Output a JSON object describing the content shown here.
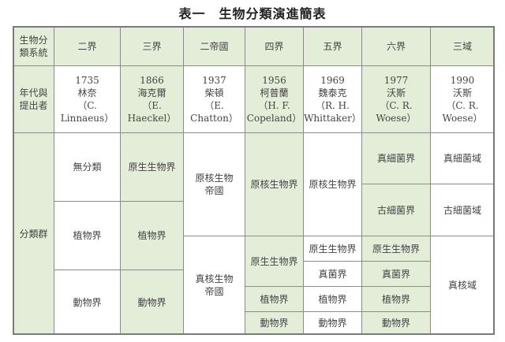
{
  "title": "表一　生物分類演進簡表",
  "colors": {
    "green": "#e4edd8",
    "border": "#8a8a8a"
  },
  "header": {
    "row_label": "生物分\n類系統",
    "systems": [
      "二界",
      "三界",
      "二帝國",
      "四界",
      "五界",
      "六界",
      "三域"
    ]
  },
  "proposers": {
    "row_label": "年代與\n提出者",
    "entries": [
      "1735\n林奈\n（C. Linnaeus）",
      "1866\n海克爾\n（E. Haeckel）",
      "1937\n柴頓\n（E. Chatton）",
      "1956\n柯普蘭\n（H. F.\nCopeland）",
      "1969\n魏泰克\n（R. H.\nWhittaker）",
      "1977\n沃斯\n（C. R. Woese）",
      "1990\n沃斯\n（C. R. Woese）"
    ]
  },
  "groups": {
    "row_label": "分類群",
    "two_kingdoms": [
      "無分類",
      "植物界",
      "動物界"
    ],
    "three_kingdoms": [
      "原生生物界",
      "植物界",
      "動物界"
    ],
    "two_empires": [
      "原核生物\n帝國",
      "真核生物\n帝國"
    ],
    "four_kingdoms": [
      "原核生物界",
      "原生生物界",
      "植物界",
      "動物界"
    ],
    "five_kingdoms": [
      "原核生物界",
      "原生生物界",
      "真菌界",
      "植物界",
      "動物界"
    ],
    "six_kingdoms": [
      "真細菌界",
      "古細菌界",
      "原生生物界",
      "真菌界",
      "植物界",
      "動物界"
    ],
    "three_domains": [
      "真細菌域",
      "古細菌域",
      "真核域"
    ]
  }
}
